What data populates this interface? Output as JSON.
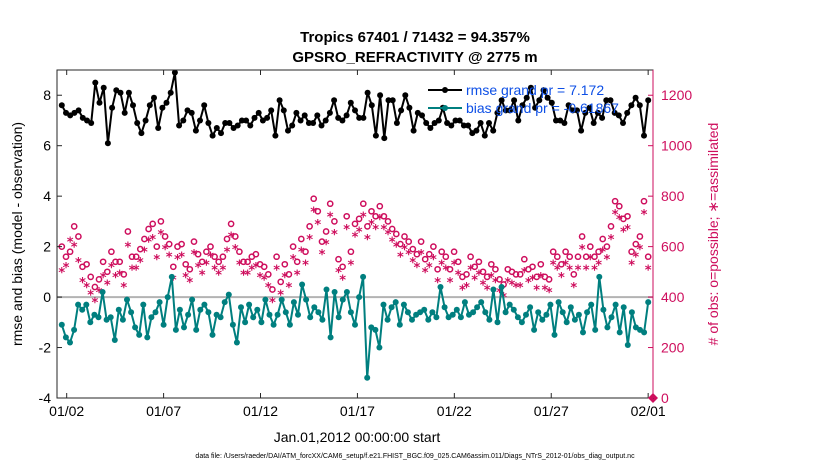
{
  "chart_data": {
    "type": "line",
    "title": "Tropics 67401 / 71432 = 94.357%",
    "subtitle": "GPSRO_REFRACTIVITY @ 2775 m",
    "xlabel": "Jan.01,2012 00:00:00 start",
    "ylabel_left": "rmse and bias (model - observation)",
    "ylabel_right": "# of obs: o=possible; ∗=assimilated",
    "footer": "data file: /Users/raeder/DAI/ATM_forcXX/CAM6_setup/f.e21.FHIST_BGC.f09_025.CAM6assim.011/Diags_NTrS_2012-01/obs_diag_output.nc",
    "x_tick_labels": [
      "01/02",
      "01/07",
      "01/12",
      "01/17",
      "01/22",
      "01/27",
      "02/01"
    ],
    "x_tick_values": [
      1,
      6,
      11,
      16,
      21,
      26,
      31
    ],
    "xlim": [
      0.5,
      31.25
    ],
    "ylim_left": [
      -4,
      9
    ],
    "yticks_left": [
      "-4",
      "-2",
      "0",
      "2",
      "4",
      "6",
      "8"
    ],
    "ylim_right": [
      0,
      1300
    ],
    "yticks_right": [
      "0",
      "200",
      "400",
      "600",
      "800",
      "1000",
      "1200"
    ],
    "legend": [
      {
        "label": "rmse grand pr = 7.172",
        "color": "#000000"
      },
      {
        "label": "bias grand pr = -0.61867",
        "color": "#007f7f"
      }
    ],
    "series": [
      {
        "name": "rmse",
        "color": "#000000",
        "values": [
          7.6,
          7.3,
          7.2,
          7.3,
          7.4,
          7.1,
          7.0,
          6.9,
          8.5,
          7.7,
          8.3,
          6.1,
          7.5,
          8.2,
          8.1,
          7.3,
          8.1,
          7.6,
          6.9,
          6.5,
          7.0,
          7.6,
          7.9,
          6.7,
          7.5,
          7.7,
          8.1,
          8.9,
          6.8,
          7.0,
          7.4,
          7.3,
          6.6,
          7.0,
          7.6,
          6.9,
          6.4,
          6.7,
          6.5,
          6.9,
          6.9,
          6.7,
          6.8,
          7.0,
          7.0,
          6.8,
          7.1,
          7.3,
          7.0,
          7.1,
          7.4,
          6.4,
          7.8,
          7.4,
          6.6,
          6.8,
          7.3,
          7.0,
          7.2,
          6.9,
          6.9,
          7.2,
          6.8,
          7.0,
          7.3,
          7.8,
          7.1,
          7.0,
          7.2,
          7.7,
          7.4,
          7.1,
          7.1,
          8.1,
          7.6,
          6.4,
          8.0,
          6.3,
          7.8,
          7.8,
          6.9,
          7.4,
          8.0,
          7.5,
          6.6,
          7.3,
          7.2,
          6.9,
          6.7,
          6.9,
          7.0,
          7.5,
          6.9,
          6.8,
          7.0,
          7.0,
          6.8,
          6.8,
          6.5,
          6.6,
          6.9,
          6.4,
          6.9,
          6.6,
          7.3,
          7.8,
          7.4,
          7.4,
          7.8,
          7.0,
          7.6,
          7.9,
          8.3,
          7.5,
          7.8,
          8.2,
          7.9,
          7.7,
          7.0,
          7.0,
          6.9,
          7.6,
          7.4,
          7.4,
          6.6,
          7.3,
          7.5,
          6.9,
          7.3,
          7.1,
          7.8,
          7.8,
          7.3,
          7.2,
          6.9,
          7.3,
          7.6,
          7.9,
          7.6,
          6.4,
          7.8
        ]
      },
      {
        "name": "bias",
        "color": "#007f7f",
        "values": [
          -1.1,
          -1.6,
          -1.8,
          -1.3,
          -0.3,
          -0.5,
          -0.3,
          -1.0,
          -0.7,
          -0.8,
          0.2,
          -0.9,
          -0.8,
          -1.7,
          -0.5,
          -0.9,
          -0.1,
          -0.6,
          -1.2,
          -1.5,
          -0.3,
          -1.6,
          -0.8,
          -0.6,
          -0.2,
          -1.1,
          0.0,
          0.8,
          -1.3,
          -0.5,
          -1.2,
          -0.7,
          -0.1,
          -1.3,
          -0.5,
          -0.3,
          -0.6,
          -1.5,
          -0.7,
          -0.8,
          -0.2,
          0.1,
          -1.1,
          -1.8,
          -0.4,
          -1.0,
          -0.3,
          -0.8,
          -0.5,
          -1.0,
          -0.1,
          -0.7,
          -1.1,
          -0.7,
          -0.1,
          -0.6,
          -1.1,
          -0.2,
          -0.7,
          0.5,
          -0.1,
          -0.8,
          -0.4,
          -0.6,
          -0.9,
          0.3,
          -1.6,
          0.2,
          -0.8,
          -0.1,
          0.2,
          -0.6,
          -1.1,
          0.0,
          0.8,
          -3.2,
          -1.2,
          -1.3,
          -2.0,
          -0.3,
          -0.9,
          -0.4,
          -0.2,
          -1.1,
          -0.3,
          -0.6,
          -0.9,
          -0.7,
          -0.6,
          -0.5,
          -0.9,
          -0.6,
          -0.8,
          0.4,
          -0.4,
          -0.8,
          -0.7,
          -0.5,
          -0.8,
          -0.2,
          -0.7,
          -0.6,
          -0.4,
          -0.2,
          -0.6,
          -0.9,
          0.3,
          -1.0,
          0.4,
          -0.6,
          -0.3,
          -0.5,
          -0.8,
          -1.0,
          -0.7,
          -0.4,
          -1.3,
          -0.6,
          -0.9,
          -0.7,
          -0.3,
          -1.5,
          -0.2,
          -0.6,
          -1.0,
          -0.4,
          -0.9,
          -0.7,
          -1.4,
          -0.6,
          -0.3,
          -1.3,
          0.8,
          -0.5,
          -1.2,
          -0.8,
          -0.3,
          -1.4,
          -0.4,
          -1.9,
          -0.6,
          -1.2,
          -1.3,
          -1.4,
          -0.2
        ]
      },
      {
        "name": "possible",
        "color": "#ce0e5d",
        "marker": "o",
        "values": [
          600,
          560,
          580,
          680,
          640,
          520,
          530,
          480,
          440,
          470,
          540,
          500,
          580,
          540,
          540,
          490,
          660,
          560,
          560,
          590,
          630,
          670,
          690,
          600,
          700,
          640,
          610,
          520,
          600,
          610,
          530,
          510,
          620,
          570,
          540,
          580,
          600,
          560,
          540,
          560,
          630,
          690,
          640,
          580,
          540,
          540,
          560,
          570,
          530,
          520,
          490,
          430,
          560,
          460,
          530,
          490,
          600,
          540,
          630,
          580,
          680,
          790,
          740,
          620,
          660,
          770,
          700,
          550,
          520,
          720,
          580,
          690,
          710,
          770,
          680,
          740,
          720,
          760,
          720,
          700,
          670,
          650,
          610,
          640,
          620,
          590,
          570,
          620,
          550,
          570,
          600,
          510,
          580,
          560,
          510,
          580,
          540,
          480,
          490,
          560,
          520,
          540,
          500,
          480,
          530,
          510,
          470,
          450,
          510,
          500,
          490,
          490,
          550,
          510,
          520,
          480,
          530,
          480,
          470,
          580,
          560,
          530,
          580,
          560,
          490,
          560,
          640,
          560,
          600,
          560,
          580,
          630,
          600,
          680,
          780,
          760,
          710,
          720,
          580,
          610,
          640,
          780,
          560
        ]
      },
      {
        "name": "assimilated",
        "color": "#ce0e5d",
        "marker": "*",
        "values": [
          500,
          520,
          620,
          600,
          540,
          460,
          440,
          410,
          380,
          420,
          480,
          450,
          520,
          480,
          490,
          440,
          600,
          510,
          510,
          540,
          580,
          620,
          630,
          550,
          650,
          590,
          560,
          470,
          550,
          560,
          480,
          460,
          570,
          520,
          490,
          530,
          560,
          510,
          490,
          510,
          580,
          640,
          590,
          530,
          490,
          490,
          510,
          520,
          480,
          470,
          440,
          380,
          510,
          410,
          480,
          440,
          550,
          490,
          580,
          530,
          630,
          740,
          690,
          570,
          610,
          720,
          650,
          500,
          470,
          670,
          530,
          640,
          660,
          720,
          630,
          690,
          670,
          710,
          670,
          650,
          620,
          600,
          560,
          590,
          570,
          540,
          520,
          570,
          500,
          520,
          550,
          460,
          530,
          510,
          460,
          530,
          490,
          430,
          440,
          510,
          470,
          490,
          450,
          430,
          480,
          460,
          420,
          400,
          460,
          450,
          440,
          440,
          500,
          460,
          470,
          430,
          480,
          430,
          420,
          530,
          510,
          480,
          530,
          510,
          440,
          510,
          590,
          510,
          550,
          510,
          530,
          580,
          550,
          630,
          730,
          710,
          660,
          670,
          530,
          560,
          590,
          730,
          510
        ]
      }
    ]
  }
}
